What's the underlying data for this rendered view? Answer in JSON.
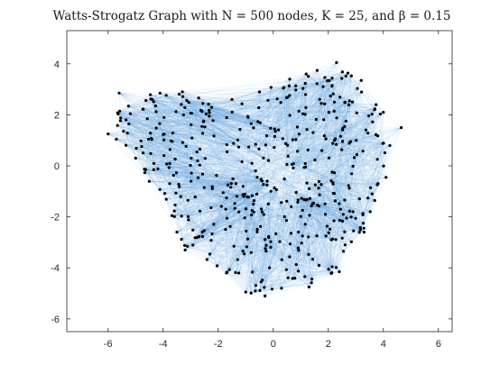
{
  "chart_data": {
    "type": "scatter",
    "title": "Watts-Strogatz Graph with N = 500 nodes, K = 25, and β = 0.15",
    "xlabel": "",
    "ylabel": "",
    "xlim": [
      -7.5,
      6.5
    ],
    "ylim": [
      -6.5,
      5.3
    ],
    "xticks": [
      -6,
      -4,
      -2,
      0,
      2,
      4,
      6
    ],
    "yticks": [
      -6,
      -4,
      -2,
      0,
      2,
      4
    ],
    "xtick_labels": [
      "-6",
      "-4",
      "-2",
      "0",
      "2",
      "4",
      "6"
    ],
    "ytick_labels": [
      "-6",
      "-4",
      "-2",
      "0",
      "2",
      "4"
    ],
    "grid": false,
    "nodes": 500,
    "K": 25,
    "beta": 0.15,
    "node_color": "#000000",
    "edge_color": "#3a8fd6",
    "hull_nodes": [
      {
        "x": -6.0,
        "y": 1.25
      },
      {
        "x": -5.6,
        "y": 2.85
      },
      {
        "x": -3.3,
        "y": 2.9
      },
      {
        "x": -1.5,
        "y": 2.6
      },
      {
        "x": 0.6,
        "y": 3.4
      },
      {
        "x": 1.2,
        "y": 3.6
      },
      {
        "x": 2.3,
        "y": 4.05
      },
      {
        "x": 3.2,
        "y": 3.35
      },
      {
        "x": 4.0,
        "y": 2.1
      },
      {
        "x": 4.65,
        "y": 1.5
      },
      {
        "x": 4.1,
        "y": -0.45
      },
      {
        "x": 3.3,
        "y": -2.6
      },
      {
        "x": 2.4,
        "y": -4.15
      },
      {
        "x": 1.3,
        "y": -4.75
      },
      {
        "x": 0.3,
        "y": -4.8
      },
      {
        "x": -0.3,
        "y": -5.1
      },
      {
        "x": -1.0,
        "y": -4.95
      },
      {
        "x": -1.7,
        "y": -4.2
      },
      {
        "x": -3.2,
        "y": -3.3
      },
      {
        "x": -3.5,
        "y": -2.6
      },
      {
        "x": -5.0,
        "y": 0.3
      }
    ]
  }
}
